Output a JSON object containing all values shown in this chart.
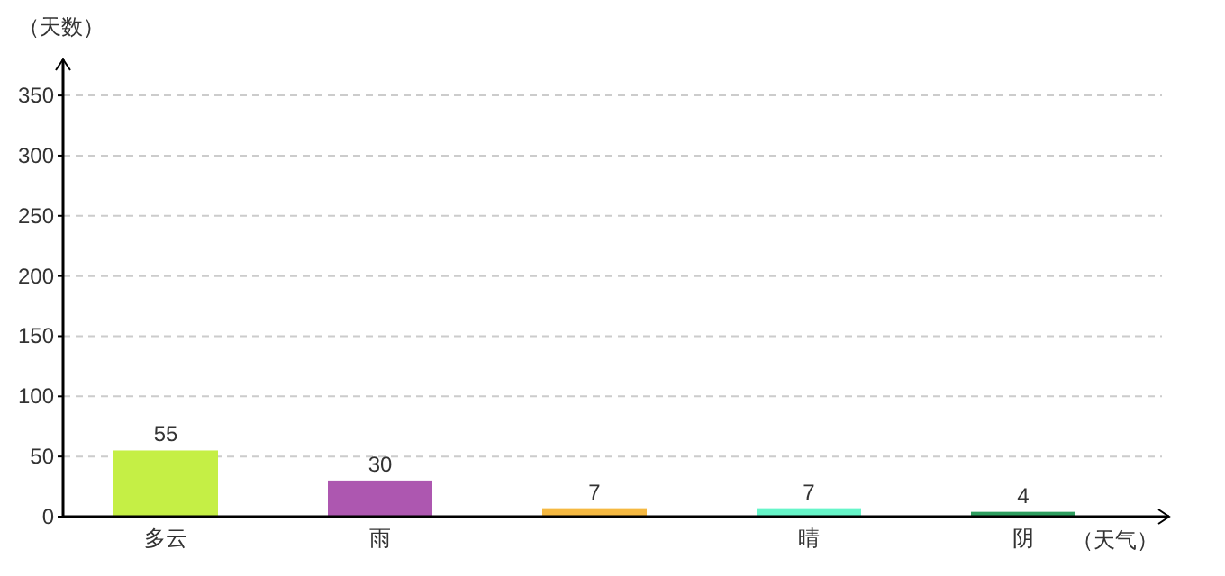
{
  "chart_data": {
    "type": "bar",
    "xlabel": "（天气）",
    "ylabel": "（天数）",
    "categories": [
      "多云",
      "雨",
      null,
      "晴",
      "阴"
    ],
    "values": [
      55,
      30,
      7,
      7,
      4
    ],
    "colors": [
      "#c5ef45",
      "#ad57b0",
      "#f5b942",
      "#66f5c9",
      "#2e9e5f"
    ],
    "ylim": [
      0,
      380
    ],
    "yticks": [
      0,
      50,
      100,
      150,
      200,
      250,
      300,
      350
    ],
    "grid": "y",
    "data_labels": true
  }
}
